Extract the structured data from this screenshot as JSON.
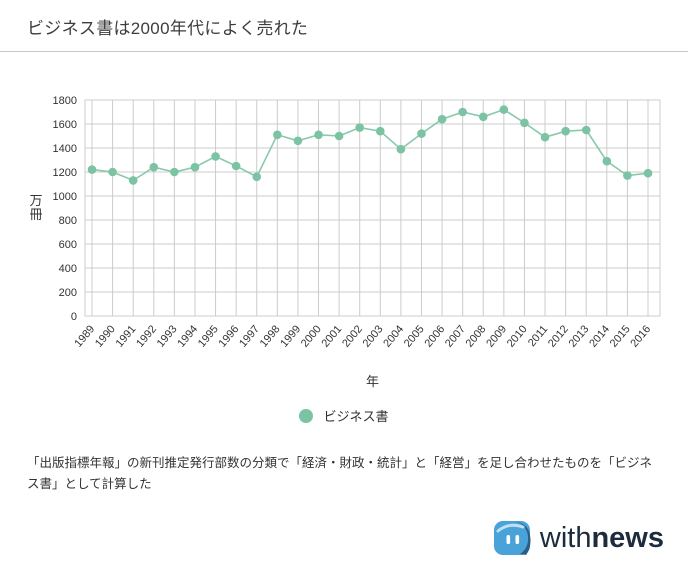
{
  "page": {
    "title": "ビジネス書は2000年代によく売れた",
    "footnote": "「出版指標年報」の新刊推定発行部数の分類で「経済・財政・統計」と「経営」を足し合わせたものを「ビジネス書」として計算した",
    "logo": {
      "with": "with",
      "news": "news"
    }
  },
  "chart_data": {
    "type": "line",
    "title": "ビジネス書は2000年代によく売れた",
    "x": [
      1989,
      1990,
      1991,
      1992,
      1993,
      1994,
      1995,
      1996,
      1997,
      1998,
      1999,
      2000,
      2001,
      2002,
      2003,
      2004,
      2005,
      2006,
      2007,
      2008,
      2009,
      2010,
      2011,
      2012,
      2013,
      2014,
      2015,
      2016
    ],
    "series": [
      {
        "name": "ビジネス書",
        "color": "#7cc3a4",
        "values": [
          1220,
          1200,
          1130,
          1240,
          1200,
          1240,
          1330,
          1250,
          1160,
          1510,
          1460,
          1510,
          1500,
          1570,
          1540,
          1390,
          1520,
          1640,
          1700,
          1660,
          1720,
          1610,
          1490,
          1540,
          1550,
          1290,
          1170,
          1190
        ]
      }
    ],
    "xlabel": "年",
    "ylabel": "万冊",
    "ylim": [
      0,
      1800
    ],
    "ytick_step": 200,
    "grid": true,
    "legend_position": "bottom"
  },
  "colors": {
    "line": "#7cc3a4",
    "grid": "#cccccc",
    "axis_text": "#333333",
    "logo_blue": "#4aa3d8",
    "logo_dark_blue": "#2c5d85",
    "logo_text": "#1c2c3d"
  }
}
